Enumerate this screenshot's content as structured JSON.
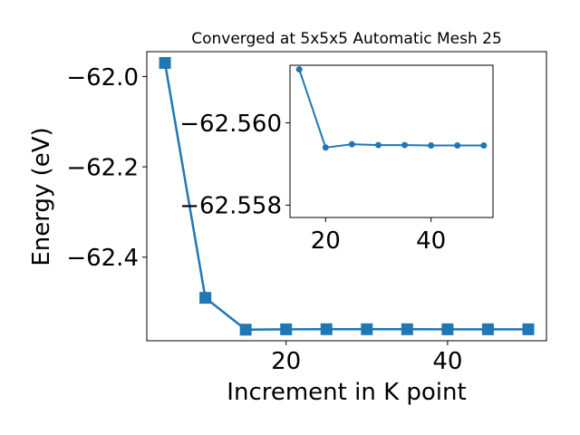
{
  "chart_data": [
    {
      "type": "line",
      "title": "Converged at 5x5x5 Automatic Mesh 25",
      "xlabel": "Increment in K point",
      "ylabel": "Energy (eV)",
      "x": [
        5,
        10,
        15,
        20,
        25,
        30,
        35,
        40,
        45,
        50
      ],
      "series": [
        {
          "values": [
            -61.97,
            -62.49,
            -62.5605,
            -62.5597,
            -62.5594,
            -62.5595,
            -62.5595,
            -62.5596,
            -62.5596,
            -62.5596
          ]
        }
      ],
      "xlim": [
        2.75,
        52.25
      ],
      "ylim": [
        -62.585,
        -61.945
      ],
      "xticks": [
        20,
        40
      ],
      "yticks": [
        -62.0,
        -62.2,
        -62.4
      ],
      "xtick_labels": [
        "20",
        "40"
      ],
      "ytick_labels": [
        "−62.0",
        "−62.2",
        "−62.4"
      ],
      "marker": "square",
      "color": "#1f77b4",
      "grid": false
    },
    {
      "type": "line",
      "title": "",
      "xlabel": "",
      "ylabel": "",
      "x": [
        15,
        20,
        25,
        30,
        35,
        40,
        45,
        50
      ],
      "series": [
        {
          "values": [
            -62.5613,
            -62.5594,
            -62.55948,
            -62.55946,
            -62.55946,
            -62.55945,
            -62.55945,
            -62.55945
          ]
        }
      ],
      "xlim": [
        13.25,
        51.75
      ],
      "ylim": [
        -62.5577,
        -62.5614
      ],
      "xticks": [
        20,
        40
      ],
      "yticks": [
        -62.56,
        -62.558
      ],
      "xtick_labels": [
        "20",
        "40"
      ],
      "ytick_labels": [
        "−62.560",
        "−62.558"
      ],
      "marker": "circle",
      "color": "#1f77b4",
      "grid": false,
      "placement": "inset-top-right"
    }
  ]
}
